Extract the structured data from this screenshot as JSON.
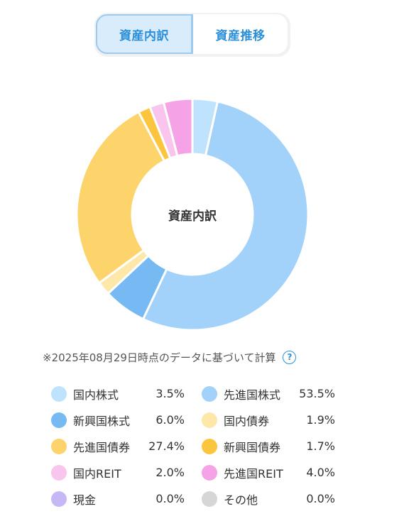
{
  "tabs": [
    {
      "label": "資産内訳",
      "active": true
    },
    {
      "label": "資産推移",
      "active": false
    }
  ],
  "chart_center_label": "資産内訳",
  "note": {
    "text": "※2025年08月29日時点のデータに基づいて計算",
    "help_icon": "?"
  },
  "chart_data": {
    "type": "pie",
    "variant": "donut",
    "title": "資産内訳",
    "unit": "%",
    "slices": [
      {
        "label": "国内株式",
        "value": 3.5,
        "display": "3.5%",
        "color": "#bfe2fd"
      },
      {
        "label": "先進国株式",
        "value": 53.5,
        "display": "53.5%",
        "color": "#a2d1fa"
      },
      {
        "label": "新興国株式",
        "value": 6.0,
        "display": "6.0%",
        "color": "#77baf3"
      },
      {
        "label": "国内債券",
        "value": 1.9,
        "display": "1.9%",
        "color": "#fde7a9"
      },
      {
        "label": "先進国債券",
        "value": 27.4,
        "display": "27.4%",
        "color": "#fdd46c"
      },
      {
        "label": "新興国債券",
        "value": 1.7,
        "display": "1.7%",
        "color": "#fbc53e"
      },
      {
        "label": "国内REIT",
        "value": 2.0,
        "display": "2.0%",
        "color": "#f9c5ee"
      },
      {
        "label": "先進国REIT",
        "value": 4.0,
        "display": "4.0%",
        "color": "#f5a3e6"
      },
      {
        "label": "現金",
        "value": 0.0,
        "display": "0.0%",
        "color": "#c6b8f5"
      },
      {
        "label": "その他",
        "value": 0.0,
        "display": "0.0%",
        "color": "#d6d6d6"
      }
    ]
  }
}
